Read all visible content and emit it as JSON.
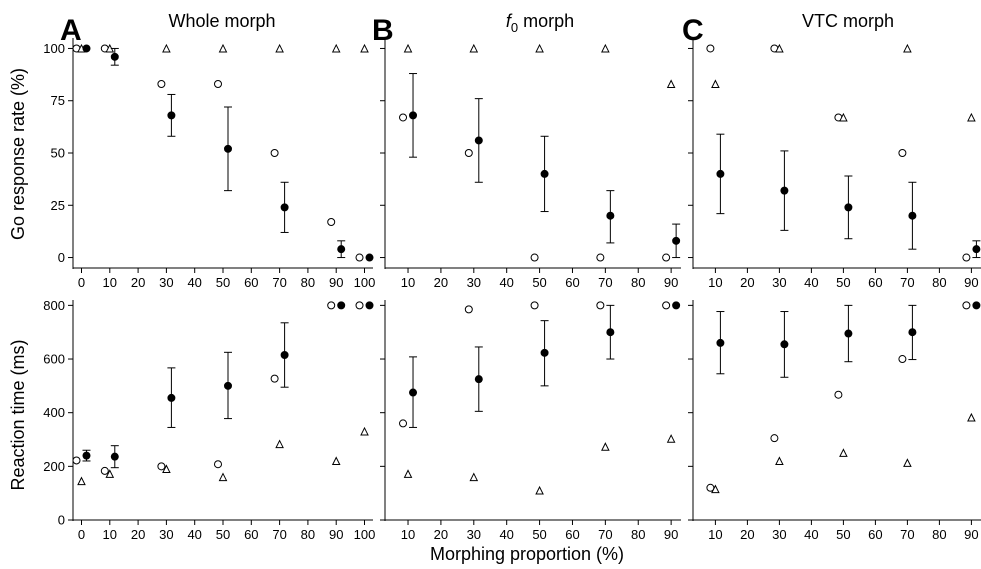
{
  "figure": {
    "xlabel": "Morphing proportion (%)",
    "rows": [
      {
        "ylabel": "Go response rate (%)",
        "yticks": [
          0,
          25,
          50,
          75,
          100
        ]
      },
      {
        "ylabel": "Reaction time (ms)",
        "yticks": [
          0,
          200,
          400,
          600,
          800
        ]
      }
    ],
    "panels": [
      {
        "letter": "A",
        "title_pre": "Whole morph",
        "title_sub": "",
        "title_post": "",
        "xticks": [
          0,
          10,
          20,
          30,
          40,
          50,
          60,
          70,
          80,
          90,
          100
        ]
      },
      {
        "letter": "B",
        "title_pre": "f",
        "title_sub": "0",
        "title_post": " morph",
        "xticks": [
          10,
          20,
          30,
          40,
          50,
          60,
          70,
          80,
          90
        ]
      },
      {
        "letter": "C",
        "title_pre": "VTC morph",
        "title_sub": "",
        "title_post": "",
        "xticks": [
          10,
          20,
          30,
          40,
          50,
          60,
          70,
          80,
          90
        ]
      }
    ]
  },
  "chart_data": [
    {
      "type": "scatter",
      "panel": "A",
      "row": "go_rate",
      "xlim": [
        -3,
        103
      ],
      "ylim": [
        -5,
        105
      ],
      "series": [
        {
          "marker": "open-circle",
          "points": [
            [
              0,
              100
            ],
            [
              10,
              100
            ],
            [
              30,
              83
            ],
            [
              50,
              83
            ],
            [
              70,
              50
            ],
            [
              90,
              17
            ],
            [
              100,
              0
            ]
          ]
        },
        {
          "marker": "open-triangle",
          "points": [
            [
              0,
              100
            ],
            [
              10,
              100
            ],
            [
              30,
              100
            ],
            [
              50,
              100
            ],
            [
              70,
              100
            ],
            [
              90,
              100
            ],
            [
              100,
              100
            ]
          ]
        },
        {
          "marker": "filled-circle-errorbar",
          "points": [
            [
              0,
              100,
              0,
              0
            ],
            [
              10,
              96,
              92,
              100
            ],
            [
              30,
              68,
              58,
              78
            ],
            [
              50,
              52,
              32,
              72
            ],
            [
              70,
              24,
              12,
              36
            ],
            [
              90,
              4,
              0,
              8
            ],
            [
              100,
              0,
              0,
              0
            ]
          ]
        }
      ]
    },
    {
      "type": "scatter",
      "panel": "B",
      "row": "go_rate",
      "xlim": [
        3,
        93
      ],
      "ylim": [
        -5,
        105
      ],
      "series": [
        {
          "marker": "open-circle",
          "points": [
            [
              10,
              67
            ],
            [
              30,
              50
            ],
            [
              50,
              0
            ],
            [
              70,
              0
            ],
            [
              90,
              0
            ]
          ]
        },
        {
          "marker": "open-triangle",
          "points": [
            [
              10,
              100
            ],
            [
              30,
              100
            ],
            [
              50,
              100
            ],
            [
              70,
              100
            ],
            [
              90,
              83
            ]
          ]
        },
        {
          "marker": "filled-circle-errorbar",
          "points": [
            [
              10,
              68,
              48,
              88
            ],
            [
              30,
              56,
              36,
              76
            ],
            [
              50,
              40,
              22,
              58
            ],
            [
              70,
              20,
              7,
              32
            ],
            [
              90,
              8,
              0,
              16
            ]
          ]
        }
      ]
    },
    {
      "type": "scatter",
      "panel": "C",
      "row": "go_rate",
      "xlim": [
        3,
        93
      ],
      "ylim": [
        -5,
        105
      ],
      "series": [
        {
          "marker": "open-circle",
          "points": [
            [
              10,
              100
            ],
            [
              30,
              100
            ],
            [
              50,
              67
            ],
            [
              70,
              50
            ],
            [
              90,
              0
            ]
          ]
        },
        {
          "marker": "open-triangle",
          "points": [
            [
              10,
              83
            ],
            [
              30,
              100
            ],
            [
              50,
              67
            ],
            [
              70,
              100
            ],
            [
              90,
              67
            ]
          ]
        },
        {
          "marker": "filled-circle-errorbar",
          "points": [
            [
              10,
              40,
              21,
              59
            ],
            [
              30,
              32,
              13,
              51
            ],
            [
              50,
              24,
              9,
              39
            ],
            [
              70,
              20,
              4,
              36
            ],
            [
              90,
              4,
              0,
              8
            ]
          ]
        }
      ]
    },
    {
      "type": "scatter",
      "panel": "A",
      "row": "reaction_time",
      "xlim": [
        -3,
        103
      ],
      "ylim": [
        0,
        820
      ],
      "series": [
        {
          "marker": "open-circle",
          "points": [
            [
              0,
              222
            ],
            [
              10,
              183
            ],
            [
              30,
              200
            ],
            [
              50,
              208
            ],
            [
              70,
              527
            ],
            [
              90,
              800
            ],
            [
              100,
              800
            ]
          ]
        },
        {
          "marker": "open-triangle",
          "points": [
            [
              0,
              145
            ],
            [
              10,
              172
            ],
            [
              30,
              190
            ],
            [
              50,
              160
            ],
            [
              70,
              283
            ],
            [
              90,
              220
            ],
            [
              100,
              330
            ]
          ]
        },
        {
          "marker": "filled-circle-errorbar",
          "points": [
            [
              0,
              240,
              220,
              260
            ],
            [
              10,
              236,
              195,
              277
            ],
            [
              30,
              455,
              345,
              567
            ],
            [
              50,
              500,
              378,
              625
            ],
            [
              70,
              615,
              495,
              735
            ],
            [
              90,
              800,
              800,
              800
            ],
            [
              100,
              800,
              800,
              800
            ]
          ]
        }
      ]
    },
    {
      "type": "scatter",
      "panel": "B",
      "row": "reaction_time",
      "xlim": [
        3,
        93
      ],
      "ylim": [
        0,
        820
      ],
      "series": [
        {
          "marker": "open-circle",
          "points": [
            [
              10,
              360
            ],
            [
              30,
              785
            ],
            [
              50,
              800
            ],
            [
              70,
              800
            ],
            [
              90,
              800
            ]
          ]
        },
        {
          "marker": "open-triangle",
          "points": [
            [
              10,
              172
            ],
            [
              30,
              160
            ],
            [
              50,
              110
            ],
            [
              70,
              273
            ],
            [
              90,
              303
            ]
          ]
        },
        {
          "marker": "filled-circle-errorbar",
          "points": [
            [
              10,
              475,
              345,
              608
            ],
            [
              30,
              525,
              405,
              645
            ],
            [
              50,
              623,
              500,
              743
            ],
            [
              70,
              700,
              600,
              800
            ],
            [
              90,
              800,
              800,
              800
            ]
          ]
        }
      ]
    },
    {
      "type": "scatter",
      "panel": "C",
      "row": "reaction_time",
      "xlim": [
        3,
        93
      ],
      "ylim": [
        0,
        820
      ],
      "series": [
        {
          "marker": "open-circle",
          "points": [
            [
              10,
              120
            ],
            [
              30,
              305
            ],
            [
              50,
              467
            ],
            [
              70,
              600
            ],
            [
              90,
              800
            ]
          ]
        },
        {
          "marker": "open-triangle",
          "points": [
            [
              10,
              115
            ],
            [
              30,
              220
            ],
            [
              50,
              250
            ],
            [
              70,
              213
            ],
            [
              90,
              382
            ]
          ]
        },
        {
          "marker": "filled-circle-errorbar",
          "points": [
            [
              10,
              660,
              545,
              777
            ],
            [
              30,
              655,
              532,
              777
            ],
            [
              50,
              695,
              590,
              800
            ],
            [
              70,
              700,
              598,
              800
            ],
            [
              90,
              800,
              800,
              800
            ]
          ]
        }
      ]
    }
  ]
}
